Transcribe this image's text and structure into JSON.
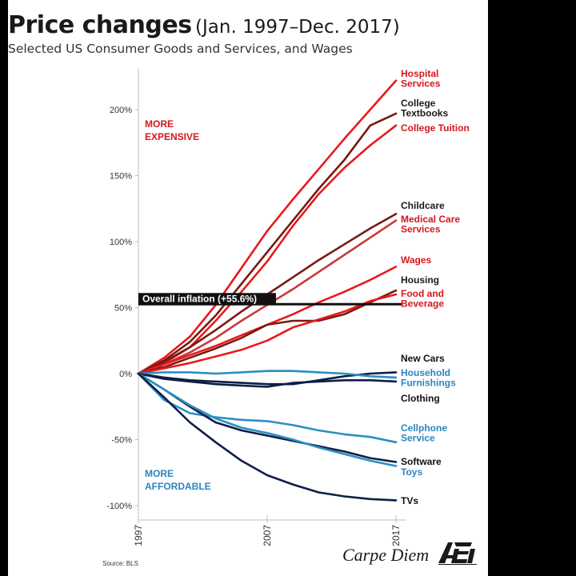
{
  "title": {
    "bold": "Price changes",
    "light": "(Jan. 1997–Dec. 2017)"
  },
  "subtitle": "Selected US Consumer Goods and Services, and Wages",
  "source": "Source: BLS",
  "brand": {
    "script": "Carpe Diem",
    "logo": "AEI"
  },
  "annotations": {
    "more_expensive": [
      "MORE",
      "EXPENSIVE"
    ],
    "more_affordable": [
      "MORE",
      "AFFORDABLE"
    ],
    "inflation_label": "Overall inflation (+55.6%)"
  },
  "colors": {
    "red": "#e8191c",
    "dark_red": "#7a1a12",
    "mid_red": "#c83a3a",
    "dark_blue": "#0e1f45",
    "light_blue": "#2a8fc4",
    "annot_red": "#d6161c",
    "annot_blue": "#2a86c0"
  },
  "chart_data": {
    "type": "line",
    "title": "Price changes (Jan. 1997–Dec. 2017)",
    "subtitle": "Selected US Consumer Goods and Services, and Wages",
    "xlabel": "",
    "ylabel": "",
    "x_ticks": [
      "1997",
      "2007",
      "2017"
    ],
    "y_ticks": [
      "200%",
      "150%",
      "100%",
      "50%",
      "0%",
      "-50%",
      "-100%"
    ],
    "ylim": [
      -100,
      230
    ],
    "xlim": [
      1997,
      2018
    ],
    "reference_line": {
      "label": "Overall inflation (+55.6%)",
      "value": 55.6
    },
    "years": [
      1997,
      1999,
      2001,
      2003,
      2005,
      2007,
      2009,
      2011,
      2013,
      2015,
      2017
    ],
    "series": [
      {
        "name": "Hospital Services",
        "label_lines": [
          "Hospital",
          "Services"
        ],
        "color_key": "red",
        "values": [
          0,
          12,
          28,
          52,
          80,
          108,
          132,
          155,
          178,
          200,
          222
        ]
      },
      {
        "name": "College Textbooks",
        "label_lines": [
          "College",
          "Textbooks"
        ],
        "color_key": "dark_red",
        "values": [
          0,
          10,
          24,
          44,
          68,
          92,
          116,
          140,
          162,
          188,
          197
        ]
      },
      {
        "name": "College Tuition",
        "label_lines": [
          "College Tuition"
        ],
        "color_key": "red",
        "values": [
          0,
          8,
          20,
          40,
          62,
          85,
          112,
          136,
          156,
          173,
          188
        ]
      },
      {
        "name": "Childcare",
        "label_lines": [
          "Childcare"
        ],
        "color_key": "dark_red",
        "values": [
          0,
          9,
          20,
          33,
          47,
          60,
          73,
          86,
          98,
          110,
          121
        ]
      },
      {
        "name": "Medical Care Services",
        "label_lines": [
          "Medical Care",
          "Services"
        ],
        "color_key": "mid_red",
        "values": [
          0,
          7,
          16,
          27,
          40,
          52,
          64,
          77,
          90,
          103,
          116
        ]
      },
      {
        "name": "Wages",
        "label_lines": [
          "Wages"
        ],
        "color_key": "red",
        "values": [
          0,
          7,
          14,
          21,
          29,
          37,
          45,
          54,
          62,
          71,
          81
        ]
      },
      {
        "name": "Housing",
        "label_lines": [
          "Housing"
        ],
        "color_key": "dark_red",
        "values": [
          0,
          5,
          12,
          19,
          27,
          37,
          40,
          40,
          45,
          54,
          63
        ]
      },
      {
        "name": "Food and Beverage",
        "label_lines": [
          "Food and",
          "Beverage"
        ],
        "color_key": "red",
        "values": [
          0,
          4,
          8,
          13,
          18,
          25,
          35,
          41,
          47,
          55,
          60
        ]
      },
      {
        "name": "New Cars",
        "label_lines": [
          "New Cars"
        ],
        "color_key": "dark_blue",
        "values": [
          0,
          -3,
          -5,
          -6,
          -7,
          -8,
          -8,
          -5,
          -2,
          0,
          1
        ]
      },
      {
        "name": "Household Furnishings",
        "label_lines": [
          "Household",
          "Furnishings"
        ],
        "color_key": "light_blue",
        "values": [
          0,
          1,
          1,
          0,
          1,
          2,
          2,
          1,
          0,
          -2,
          -3
        ]
      },
      {
        "name": "Clothing",
        "label_lines": [
          "Clothing"
        ],
        "color_key": "dark_blue",
        "values": [
          0,
          -4,
          -6,
          -8,
          -9,
          -10,
          -7,
          -6,
          -5,
          -5,
          -6
        ]
      },
      {
        "name": "Cellphone Service",
        "label_lines": [
          "Cellphone",
          "Service"
        ],
        "color_key": "light_blue",
        "values": [
          0,
          -20,
          -30,
          -33,
          -35,
          -36,
          -39,
          -43,
          -46,
          -48,
          -52
        ]
      },
      {
        "name": "Software",
        "label_lines": [
          "Software"
        ],
        "color_key": "dark_blue",
        "values": [
          0,
          -12,
          -25,
          -37,
          -43,
          -47,
          -51,
          -55,
          -59,
          -64,
          -67
        ]
      },
      {
        "name": "Toys",
        "label_lines": [
          "Toys"
        ],
        "color_key": "light_blue",
        "values": [
          0,
          -12,
          -24,
          -34,
          -41,
          -45,
          -50,
          -56,
          -61,
          -66,
          -70
        ]
      },
      {
        "name": "TVs",
        "label_lines": [
          "TVs"
        ],
        "color_key": "dark_blue",
        "values": [
          0,
          -18,
          -37,
          -52,
          -66,
          -77,
          -84,
          -90,
          -93,
          -95,
          -96
        ]
      }
    ]
  }
}
